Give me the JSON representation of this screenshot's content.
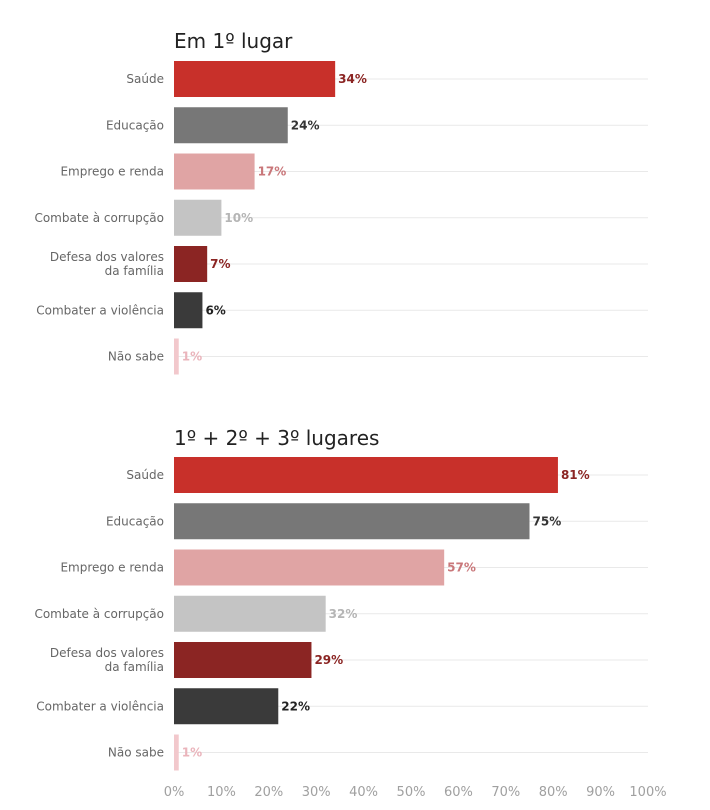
{
  "chart_data": [
    {
      "type": "bar",
      "orientation": "horizontal",
      "title": "Em 1º lugar",
      "categories": [
        "Saúde",
        "Educação",
        "Emprego e renda",
        "Combate à corrupção",
        "Defesa dos valores da família",
        "Combater a violência",
        "Não sabe"
      ],
      "values": [
        34,
        24,
        17,
        10,
        7,
        6,
        1
      ],
      "value_labels": [
        "34%",
        "24%",
        "17%",
        "10%",
        "7%",
        "6%",
        "1%"
      ],
      "xlim": [
        0,
        100
      ],
      "grid": true
    },
    {
      "type": "bar",
      "orientation": "horizontal",
      "title": "1º + 2º + 3º lugares",
      "categories": [
        "Saúde",
        "Educação",
        "Emprego e renda",
        "Combate à corrupção",
        "Defesa dos valores da família",
        "Combater a violência",
        "Não sabe"
      ],
      "values": [
        81,
        75,
        57,
        32,
        29,
        22,
        1
      ],
      "value_labels": [
        "81%",
        "75%",
        "57%",
        "32%",
        "29%",
        "22%",
        "1%"
      ],
      "xlim": [
        0,
        100
      ],
      "grid": true
    }
  ],
  "x_axis": {
    "ticks": [
      0,
      10,
      20,
      30,
      40,
      50,
      60,
      70,
      80,
      90,
      100
    ],
    "tick_labels": [
      "0%",
      "10%",
      "20%",
      "30%",
      "40%",
      "50%",
      "60%",
      "70%",
      "80%",
      "90%",
      "100%"
    ]
  },
  "colors": {
    "bars": [
      "#c8302a",
      "#777777",
      "#e0a4a4",
      "#c4c4c4",
      "#8b2523",
      "#3a3a3a",
      "#f2c8cc"
    ],
    "value_labels": [
      "#8b2523",
      "#333333",
      "#c9777a",
      "#b5b5b5",
      "#8b2523",
      "#222222",
      "#eab4bb"
    ]
  }
}
